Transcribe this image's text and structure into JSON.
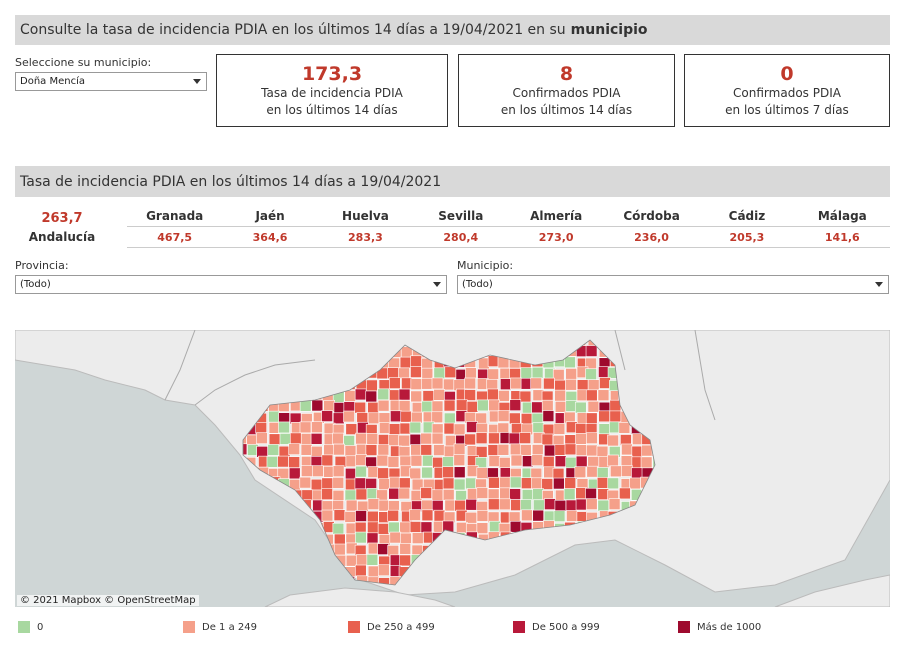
{
  "header": {
    "title_prefix": "Consulte la tasa de incidencia PDIA en los últimos 14 días a 19/04/2021 en su",
    "title_bold": "municipio"
  },
  "municipio_selector": {
    "label": "Seleccione su municipio:",
    "value": "Doña Mencía"
  },
  "kpis": [
    {
      "value": "173,3",
      "line1": "Tasa de incidencia PDIA",
      "line2": "en los últimos 14 días"
    },
    {
      "value": "8",
      "line1": "Confirmados PDIA",
      "line2": "en los últimos 14 días"
    },
    {
      "value": "0",
      "line1": "Confirmados PDIA",
      "line2": "en los últimos 7 días"
    }
  ],
  "section2": {
    "title": "Tasa de incidencia PDIA en los últimos 14 días a 19/04/2021"
  },
  "andalucia": {
    "value": "263,7",
    "label": "Andalucía"
  },
  "provinces": [
    {
      "name": "Granada",
      "value": "467,5"
    },
    {
      "name": "Jaén",
      "value": "364,6"
    },
    {
      "name": "Huelva",
      "value": "283,3"
    },
    {
      "name": "Sevilla",
      "value": "280,4"
    },
    {
      "name": "Almería",
      "value": "273,0"
    },
    {
      "name": "Córdoba",
      "value": "236,0"
    },
    {
      "name": "Cádiz",
      "value": "205,3"
    },
    {
      "name": "Málaga",
      "value": "141,6"
    }
  ],
  "filters": {
    "provincia": {
      "label": "Provincia:",
      "value": "(Todo)"
    },
    "municipio": {
      "label": "Municipio:",
      "value": "(Todo)"
    }
  },
  "map": {
    "attribution": "© 2021 Mapbox © OpenStreetMap"
  },
  "legend": [
    {
      "label": "0",
      "color": "#a8d8a0"
    },
    {
      "label": "De 1 a 249",
      "color": "#f5a08a"
    },
    {
      "label": "De 250 a 499",
      "color": "#e8604e"
    },
    {
      "label": "De 500 a 999",
      "color": "#b8193a"
    },
    {
      "label": "Más de 1000",
      "color": "#9e0a2e"
    }
  ]
}
